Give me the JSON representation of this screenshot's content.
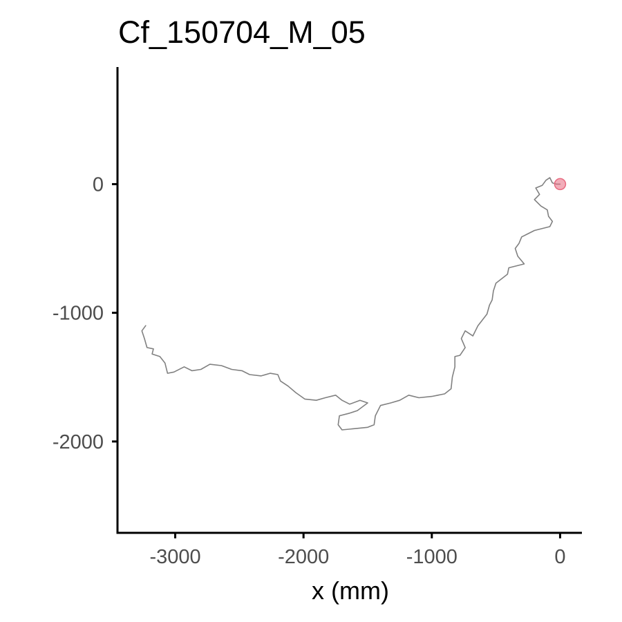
{
  "chart_data": {
    "type": "line",
    "title": "Cf_150704_M_05",
    "xlabel": "x (mm)",
    "ylabel": "",
    "xlim": [
      -3450,
      170
    ],
    "ylim": [
      -2710,
      910
    ],
    "x_ticks": [
      -3000,
      -2000,
      -1000,
      0
    ],
    "x_tick_labels": [
      "-3000",
      "-2000",
      "-1000",
      "0"
    ],
    "y_ticks": [
      0,
      -1000,
      -2000
    ],
    "y_tick_labels": [
      "0",
      "-1000",
      "-2000"
    ],
    "grid": false,
    "legend": "none",
    "series": [
      {
        "points": [
          [
            0,
            0
          ],
          [
            -30,
            0
          ],
          [
            -60,
            10
          ],
          [
            -80,
            50
          ],
          [
            -110,
            30
          ],
          [
            -140,
            -10
          ],
          [
            -190,
            -30
          ],
          [
            -160,
            -80
          ],
          [
            -200,
            -120
          ],
          [
            -150,
            -170
          ],
          [
            -100,
            -200
          ],
          [
            -90,
            -250
          ],
          [
            -60,
            -290
          ],
          [
            -80,
            -330
          ],
          [
            -200,
            -360
          ],
          [
            -300,
            -410
          ],
          [
            -320,
            -460
          ],
          [
            -350,
            -500
          ],
          [
            -330,
            -560
          ],
          [
            -280,
            -620
          ],
          [
            -400,
            -650
          ],
          [
            -410,
            -700
          ],
          [
            -500,
            -770
          ],
          [
            -520,
            -830
          ],
          [
            -530,
            -900
          ],
          [
            -550,
            -940
          ],
          [
            -570,
            -1010
          ],
          [
            -640,
            -1100
          ],
          [
            -680,
            -1180
          ],
          [
            -740,
            -1140
          ],
          [
            -770,
            -1200
          ],
          [
            -740,
            -1270
          ],
          [
            -780,
            -1330
          ],
          [
            -820,
            -1340
          ],
          [
            -820,
            -1420
          ],
          [
            -840,
            -1500
          ],
          [
            -850,
            -1590
          ],
          [
            -900,
            -1630
          ],
          [
            -1000,
            -1650
          ],
          [
            -1100,
            -1660
          ],
          [
            -1180,
            -1640
          ],
          [
            -1250,
            -1680
          ],
          [
            -1320,
            -1700
          ],
          [
            -1400,
            -1720
          ],
          [
            -1440,
            -1800
          ],
          [
            -1450,
            -1870
          ],
          [
            -1500,
            -1890
          ],
          [
            -1600,
            -1900
          ],
          [
            -1700,
            -1910
          ],
          [
            -1730,
            -1870
          ],
          [
            -1720,
            -1800
          ],
          [
            -1640,
            -1780
          ],
          [
            -1580,
            -1760
          ],
          [
            -1500,
            -1700
          ],
          [
            -1560,
            -1680
          ],
          [
            -1640,
            -1710
          ],
          [
            -1700,
            -1680
          ],
          [
            -1750,
            -1640
          ],
          [
            -1830,
            -1660
          ],
          [
            -1900,
            -1680
          ],
          [
            -1990,
            -1670
          ],
          [
            -2060,
            -1620
          ],
          [
            -2120,
            -1570
          ],
          [
            -2180,
            -1530
          ],
          [
            -2200,
            -1480
          ],
          [
            -2260,
            -1470
          ],
          [
            -2330,
            -1490
          ],
          [
            -2420,
            -1480
          ],
          [
            -2480,
            -1450
          ],
          [
            -2560,
            -1440
          ],
          [
            -2640,
            -1410
          ],
          [
            -2730,
            -1400
          ],
          [
            -2800,
            -1440
          ],
          [
            -2870,
            -1450
          ],
          [
            -2930,
            -1420
          ],
          [
            -3010,
            -1460
          ],
          [
            -3060,
            -1470
          ],
          [
            -3080,
            -1390
          ],
          [
            -3120,
            -1340
          ],
          [
            -3180,
            -1320
          ],
          [
            -3170,
            -1280
          ],
          [
            -3220,
            -1270
          ],
          [
            -3240,
            -1200
          ],
          [
            -3260,
            -1140
          ],
          [
            -3230,
            -1100
          ]
        ]
      }
    ],
    "markers": [
      {
        "x": 0,
        "y": 0,
        "color": "#e8697f"
      }
    ]
  },
  "colors": {
    "track": "#808080",
    "start_marker": "#e8697f",
    "axis": "#000000",
    "tick_label": "#4d4d4d"
  }
}
